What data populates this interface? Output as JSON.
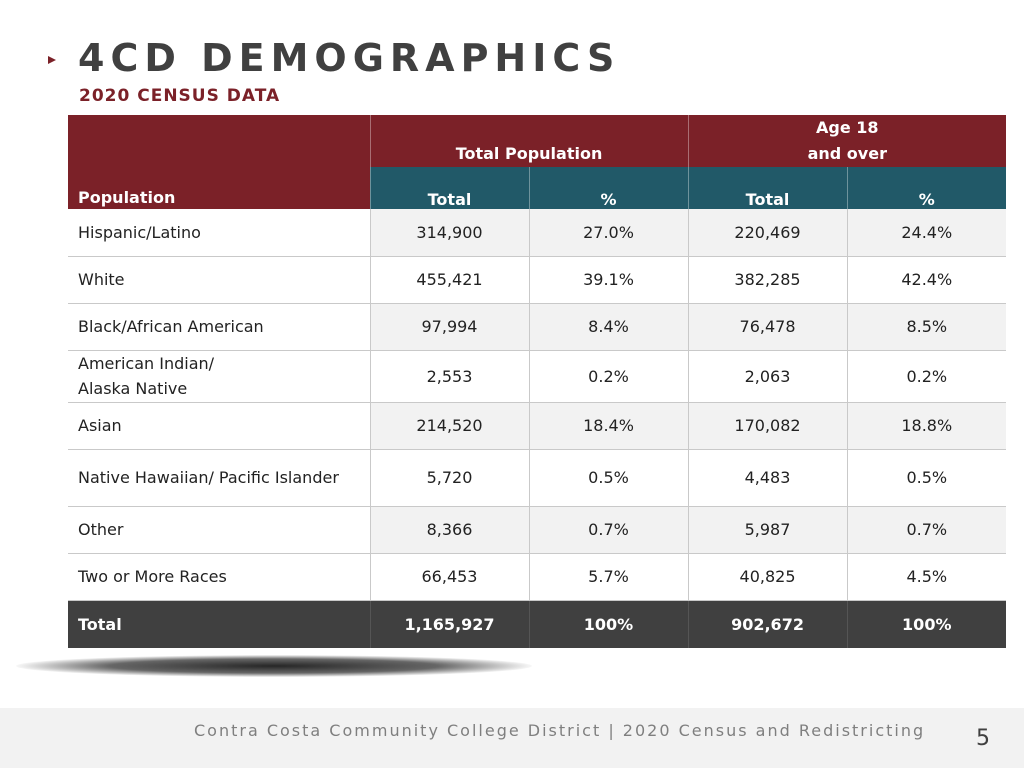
{
  "header": {
    "title": "4CD DEMOGRAPHICS",
    "subtitle": "2020 CENSUS DATA"
  },
  "table": {
    "group_headers": {
      "population": "Population",
      "total_population": "Total Population",
      "age18_line1": "Age 18",
      "age18_line2": "and over"
    },
    "sub_headers": [
      "Total",
      "%",
      "Total",
      "%"
    ],
    "rows": [
      {
        "name": "Hispanic/Latino",
        "tp_total": "314,900",
        "tp_pct": "27.0%",
        "a_total": "220,469",
        "a_pct": "24.4%"
      },
      {
        "name": "White",
        "tp_total": "455,421",
        "tp_pct": "39.1%",
        "a_total": "382,285",
        "a_pct": "42.4%"
      },
      {
        "name": "Black/African American",
        "tp_total": "97,994",
        "tp_pct": "8.4%",
        "a_total": "76,478",
        "a_pct": "8.5%"
      },
      {
        "name_line1": "American Indian/",
        "name_line2": "Alaska Native",
        "tp_total": "2,553",
        "tp_pct": "0.2%",
        "a_total": "2,063",
        "a_pct": "0.2%"
      },
      {
        "name": "Asian",
        "tp_total": "214,520",
        "tp_pct": "18.4%",
        "a_total": "170,082",
        "a_pct": "18.8%"
      },
      {
        "name": "Native Hawaiian/ Pacific Islander",
        "tp_total": "5,720",
        "tp_pct": "0.5%",
        "a_total": "4,483",
        "a_pct": "0.5%"
      },
      {
        "name": "Other",
        "tp_total": "8,366",
        "tp_pct": "0.7%",
        "a_total": "5,987",
        "a_pct": "0.7%"
      },
      {
        "name": "Two or More Races",
        "tp_total": "66,453",
        "tp_pct": "5.7%",
        "a_total": "40,825",
        "a_pct": "4.5%"
      }
    ],
    "total_row": {
      "name": "Total",
      "tp_total": "1,165,927",
      "tp_pct": "100%",
      "a_total": "902,672",
      "a_pct": "100%"
    }
  },
  "footer": {
    "text": "Contra Costa Community College District | 2020 Census and Redistricting",
    "page_number": "5"
  },
  "colors": {
    "maroon": "#7b2128",
    "teal": "#215968",
    "dark_gray": "#404040"
  }
}
